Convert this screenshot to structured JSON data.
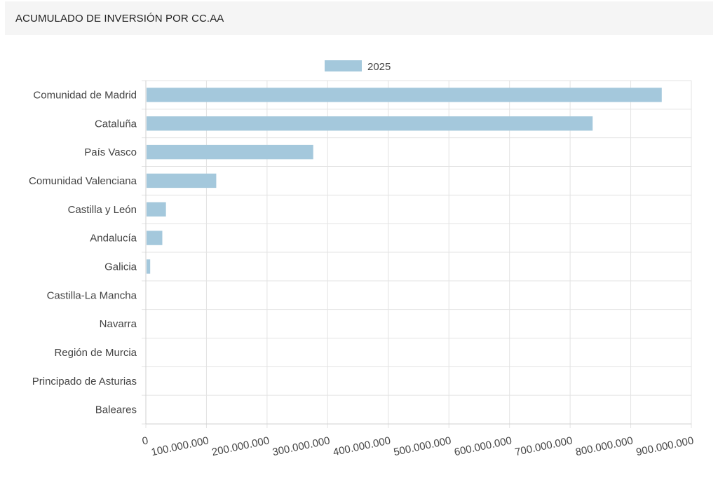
{
  "header": {
    "title": "ACUMULADO DE INVERSIÓN POR CC.AA"
  },
  "chart_data": {
    "type": "bar",
    "orientation": "horizontal",
    "title": "ACUMULADO DE INVERSIÓN POR CC.AA",
    "categories": [
      "Comunidad de Madrid",
      "Cataluña",
      "País Vasco",
      "Comunidad Valenciana",
      "Castilla y León",
      "Andalucía",
      "Galicia",
      "Castilla-La Mancha",
      "Navarra",
      "Región de Murcia",
      "Principado de Asturias",
      "Baleares"
    ],
    "series": [
      {
        "name": "2025",
        "color": "#a4c8dc",
        "values": [
          850000000,
          736000000,
          275000000,
          115000000,
          32000000,
          26000000,
          6000000,
          0,
          0,
          0,
          0,
          0
        ]
      }
    ],
    "xlim": [
      0,
      900000000
    ],
    "xticks": [
      "0",
      "100.000.000",
      "200.000.000",
      "300.000.000",
      "400.000.000",
      "500.000.000",
      "600.000.000",
      "700.000.000",
      "800.000.000",
      "900.000.000"
    ],
    "grid": true,
    "legend_position": "top-center"
  }
}
